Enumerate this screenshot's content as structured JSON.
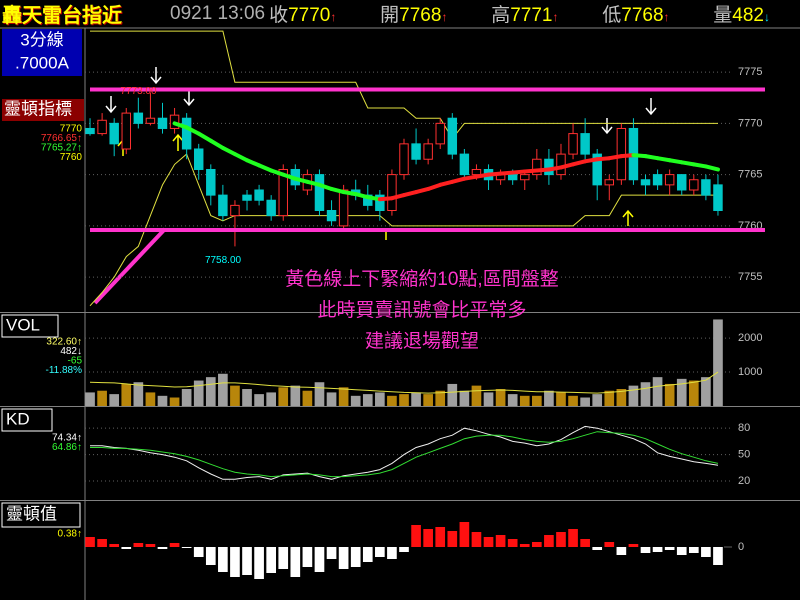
{
  "header": {
    "title": "轟天雷台指近",
    "time": "0921 13:06",
    "quotes": [
      {
        "label": "收",
        "value": "7770",
        "arrow": "↑",
        "arrow_color": "#ff3030"
      },
      {
        "label": "開",
        "value": "7768",
        "arrow": "↑",
        "arrow_color": "#ff3030"
      },
      {
        "label": "高",
        "value": "7771",
        "arrow": "↑",
        "arrow_color": "#ff3030"
      },
      {
        "label": "低",
        "value": "7768",
        "arrow": "↑",
        "arrow_color": "#ff3030"
      },
      {
        "label": "量",
        "value": "482",
        "arrow": "↓",
        "arrow_color": "#00e0ff"
      }
    ]
  },
  "chart_data": [
    {
      "type": "candlestick",
      "title": "3分線",
      "subtitle": ".7000A",
      "indicator": "靈頓指標",
      "readouts": [
        {
          "text": "7770",
          "color": "#ffff00"
        },
        {
          "text": "7766.65↑",
          "color": "#ff3030"
        },
        {
          "text": "7765.27↑",
          "color": "#33ff33"
        },
        {
          "text": "7760",
          "color": "#ffff00"
        }
      ],
      "ylim": [
        7751.6,
        7779.3
      ],
      "yticks": [
        7755,
        7760,
        7765,
        7770,
        7775
      ],
      "grid": true,
      "open": [
        7769.5,
        7769.0,
        7770.0,
        7767.5,
        7771.0,
        7770.0,
        7770.5,
        7769.5,
        7770.5,
        7767.5,
        7765.5,
        7763.0,
        7761.0,
        7763.0,
        7763.5,
        7762.5,
        7761.0,
        7765.5,
        7763.5,
        7765.0,
        7761.5,
        7760.0,
        7763.5,
        7763.0,
        7763.0,
        7761.5,
        7765.0,
        7768.0,
        7766.5,
        7768.0,
        7770.5,
        7767.0,
        7765.0,
        7765.5,
        7764.5,
        7765.0,
        7764.5,
        7765.0,
        7766.5,
        7765.0,
        7767.0,
        7769.0,
        7767.0,
        7764.0,
        7764.5,
        7769.5,
        7764.5,
        7765.0,
        7764.0,
        7765.0,
        7763.5,
        7764.5,
        7764.0
      ],
      "high": [
        7770.5,
        7771.0,
        7770.5,
        7771.5,
        7772.5,
        7773.0,
        7772.0,
        7771.5,
        7771.0,
        7768.0,
        7766.0,
        7764.0,
        7762.5,
        7763.5,
        7764.0,
        7763.0,
        7766.0,
        7766.0,
        7765.5,
        7765.5,
        7762.5,
        7764.0,
        7764.5,
        7764.0,
        7763.5,
        7765.5,
        7768.5,
        7769.5,
        7768.5,
        7770.5,
        7771.0,
        7767.5,
        7766.0,
        7766.0,
        7765.5,
        7765.5,
        7765.5,
        7767.5,
        7767.5,
        7768.0,
        7770.0,
        7770.5,
        7767.5,
        7765.0,
        7770.0,
        7770.5,
        7765.0,
        7765.5,
        7765.5,
        7765.0,
        7765.0,
        7765.0,
        7765.0
      ],
      "low": [
        7768.8,
        7768.8,
        7766.8,
        7767.0,
        7769.5,
        7769.8,
        7769.0,
        7769.0,
        7766.5,
        7764.5,
        7762.0,
        7760.5,
        7758.0,
        7761.5,
        7762.0,
        7760.5,
        7760.5,
        7763.5,
        7763.0,
        7761.0,
        7760.0,
        7759.5,
        7762.5,
        7761.5,
        7760.5,
        7761.0,
        7764.5,
        7766.0,
        7766.0,
        7767.5,
        7766.5,
        7764.5,
        7764.5,
        7763.5,
        7764.0,
        7764.0,
        7763.5,
        7764.5,
        7764.0,
        7764.5,
        7766.5,
        7766.5,
        7762.5,
        7762.5,
        7764.0,
        7764.0,
        7763.0,
        7763.5,
        7763.0,
        7763.0,
        7763.0,
        7762.5,
        7761.0
      ],
      "close": [
        7769.0,
        7770.3,
        7768.0,
        7771.0,
        7770.0,
        7770.5,
        7769.5,
        7770.8,
        7767.5,
        7765.5,
        7763.0,
        7761.0,
        7762.0,
        7762.5,
        7762.5,
        7761.0,
        7765.5,
        7764.0,
        7765.0,
        7761.5,
        7760.5,
        7763.5,
        7763.0,
        7762.0,
        7761.5,
        7765.0,
        7768.0,
        7766.5,
        7768.0,
        7770.0,
        7767.0,
        7765.0,
        7765.5,
        7764.5,
        7765.0,
        7764.5,
        7765.0,
        7766.5,
        7765.0,
        7767.0,
        7769.0,
        7767.0,
        7764.0,
        7764.5,
        7769.5,
        7764.5,
        7764.0,
        7764.0,
        7765.0,
        7763.5,
        7764.5,
        7763.0,
        7761.5
      ],
      "up_color": "#ff3030",
      "down_color": "#00c8c8",
      "lines": [
        {
          "color": "#e0e040",
          "values": [
            7779,
            7779,
            7779,
            7779,
            7779,
            7779,
            7779,
            7779,
            7779,
            7779,
            7779,
            7779,
            7774,
            7774,
            7774,
            7774,
            7774,
            7774,
            7774,
            7774,
            7774,
            7774,
            7774,
            7771.5,
            7771.5,
            7771.5,
            7771.5,
            7770.5,
            7770.5,
            7770.5,
            7768.5,
            7770,
            7770,
            7770,
            7770,
            7770,
            7770,
            7770,
            7770,
            7770,
            7770,
            7770,
            7770,
            7770,
            7770,
            7770,
            7770,
            7770,
            7770,
            7770,
            7770,
            7770,
            7770
          ]
        },
        {
          "color": "#e0e040",
          "values": [
            7752.2,
            7753.5,
            7755,
            7757,
            7758,
            7761,
            7764,
            7766,
            7767,
            7764,
            7761,
            7760.5,
            7761,
            7761,
            7761,
            7761,
            7761,
            7761,
            7761,
            7761,
            7761,
            7761,
            7761,
            7761,
            7761,
            7760,
            7760,
            7760,
            7760,
            7760,
            7760,
            7760,
            7760,
            7760,
            7760,
            7760,
            7760,
            7760,
            7760,
            7760,
            7760,
            7761,
            7761,
            7761,
            7763,
            7763,
            7763,
            7763,
            7763,
            7763,
            7763,
            7763,
            7763
          ]
        }
      ],
      "ma": {
        "rise_color": "#ff2020",
        "fall_color": "#20ff20",
        "values": [
          null,
          null,
          null,
          null,
          null,
          null,
          null,
          7770.0,
          7769.6,
          7769.0,
          7768.3,
          7767.6,
          7767.0,
          7766.4,
          7765.9,
          7765.4,
          7765.0,
          7764.6,
          7764.3,
          7764.0,
          7763.6,
          7763.3,
          7763.1,
          7762.8,
          7762.6,
          7762.7,
          7763.0,
          7763.3,
          7763.6,
          7764.0,
          7764.3,
          7764.6,
          7764.8,
          7765.0,
          7765.1,
          7765.2,
          7765.3,
          7765.4,
          7765.5,
          7765.7,
          7766.0,
          7766.3,
          7766.5,
          7766.6,
          7766.8,
          7766.9,
          7766.8,
          7766.6,
          7766.4,
          7766.2,
          7766.0,
          7765.8,
          7765.5
        ]
      },
      "levels": [
        7773.3,
        7759.6
      ],
      "level_color": "#ff33cc",
      "high_label": "7773.00",
      "low_label": "7758.00",
      "annotations": [
        "黃色線上下緊縮約10點,區間盤整",
        "此時買賣訊號會比平常多",
        "建議退場觀望"
      ],
      "annotation_color": "#ff33cc"
    },
    {
      "type": "bar",
      "title": "VOL",
      "readouts": [
        {
          "text": "322.60↑",
          "color": "#ffff66"
        },
        {
          "text": "482↓",
          "color": "#ffffff"
        },
        {
          "text": "-65",
          "color": "#33ff33"
        },
        {
          "text": "-11.88%",
          "color": "#33ffff"
        }
      ],
      "ylim": [
        0,
        2740
      ],
      "yticks": [
        1000,
        2000
      ],
      "grid": true,
      "up_color": "#b8860b",
      "down_color": "#a0a0a0",
      "values": [
        400,
        450,
        350,
        650,
        700,
        400,
        300,
        250,
        500,
        750,
        850,
        950,
        600,
        500,
        350,
        400,
        550,
        600,
        450,
        700,
        400,
        550,
        300,
        350,
        400,
        300,
        350,
        400,
        350,
        450,
        650,
        450,
        600,
        400,
        500,
        350,
        300,
        300,
        450,
        400,
        300,
        250,
        350,
        450,
        500,
        600,
        700,
        850,
        650,
        800,
        750,
        850,
        2550
      ],
      "lines": [
        {
          "color": "#e0e040",
          "values": [
            700,
            690,
            680,
            650,
            620,
            600,
            580,
            560,
            570,
            600,
            640,
            680,
            680,
            660,
            630,
            600,
            580,
            560,
            550,
            540,
            520,
            500,
            480,
            460,
            440,
            420,
            400,
            390,
            380,
            390,
            410,
            430,
            450,
            460,
            470,
            460,
            440,
            420,
            420,
            410,
            400,
            390,
            380,
            400,
            430,
            470,
            520,
            580,
            620,
            650,
            700,
            760,
            1000
          ]
        }
      ]
    },
    {
      "type": "line",
      "title": "KD",
      "readouts": [
        {
          "text": "74.34↑",
          "color": "#ffffff"
        },
        {
          "text": "64.86↑",
          "color": "#33ff33"
        }
      ],
      "ylim": [
        -1.5,
        104
      ],
      "yticks": [
        20,
        50,
        80
      ],
      "grid": true,
      "series": [
        {
          "color": "#f0f0f0",
          "values": [
            60,
            60,
            58,
            57,
            55,
            52,
            50,
            47,
            43,
            35,
            28,
            22,
            22,
            24,
            25,
            22,
            27,
            28,
            29,
            25,
            22,
            26,
            28,
            30,
            33,
            40,
            50,
            58,
            62,
            68,
            72,
            80,
            77,
            73,
            70,
            65,
            63,
            60,
            62,
            67,
            75,
            82,
            80,
            76,
            72,
            68,
            62,
            52,
            48,
            45,
            42,
            40,
            38
          ]
        },
        {
          "color": "#33dd33",
          "values": [
            58,
            58,
            57,
            57,
            56,
            55,
            53,
            51,
            48,
            44,
            39,
            34,
            30,
            28,
            27,
            25,
            26,
            27,
            28,
            27,
            25,
            25,
            26,
            27,
            29,
            33,
            40,
            47,
            52,
            57,
            62,
            68,
            71,
            72,
            72,
            70,
            67,
            65,
            64,
            65,
            68,
            72,
            76,
            75,
            74,
            72,
            68,
            62,
            56,
            51,
            47,
            43,
            40
          ]
        }
      ]
    },
    {
      "type": "bar",
      "title": "靈頓值",
      "readouts": [
        {
          "text": "0.38↑",
          "color": "#ffff00"
        }
      ],
      "ylim": [
        -51,
        46
      ],
      "yticks": [
        0
      ],
      "grid": false,
      "pos_color": "#ff1010",
      "neg_color": "#ffffff",
      "values": [
        10,
        8,
        3,
        -2,
        4,
        3,
        -2,
        4,
        -1,
        -10,
        -18,
        -25,
        -30,
        -28,
        -32,
        -26,
        -22,
        -30,
        -20,
        -25,
        -12,
        -22,
        -20,
        -15,
        -10,
        -12,
        -5,
        22,
        18,
        20,
        16,
        25,
        15,
        10,
        12,
        8,
        3,
        5,
        12,
        15,
        18,
        8,
        -3,
        5,
        -8,
        3,
        -6,
        -5,
        -3,
        -8,
        -6,
        -10,
        -18
      ]
    }
  ]
}
